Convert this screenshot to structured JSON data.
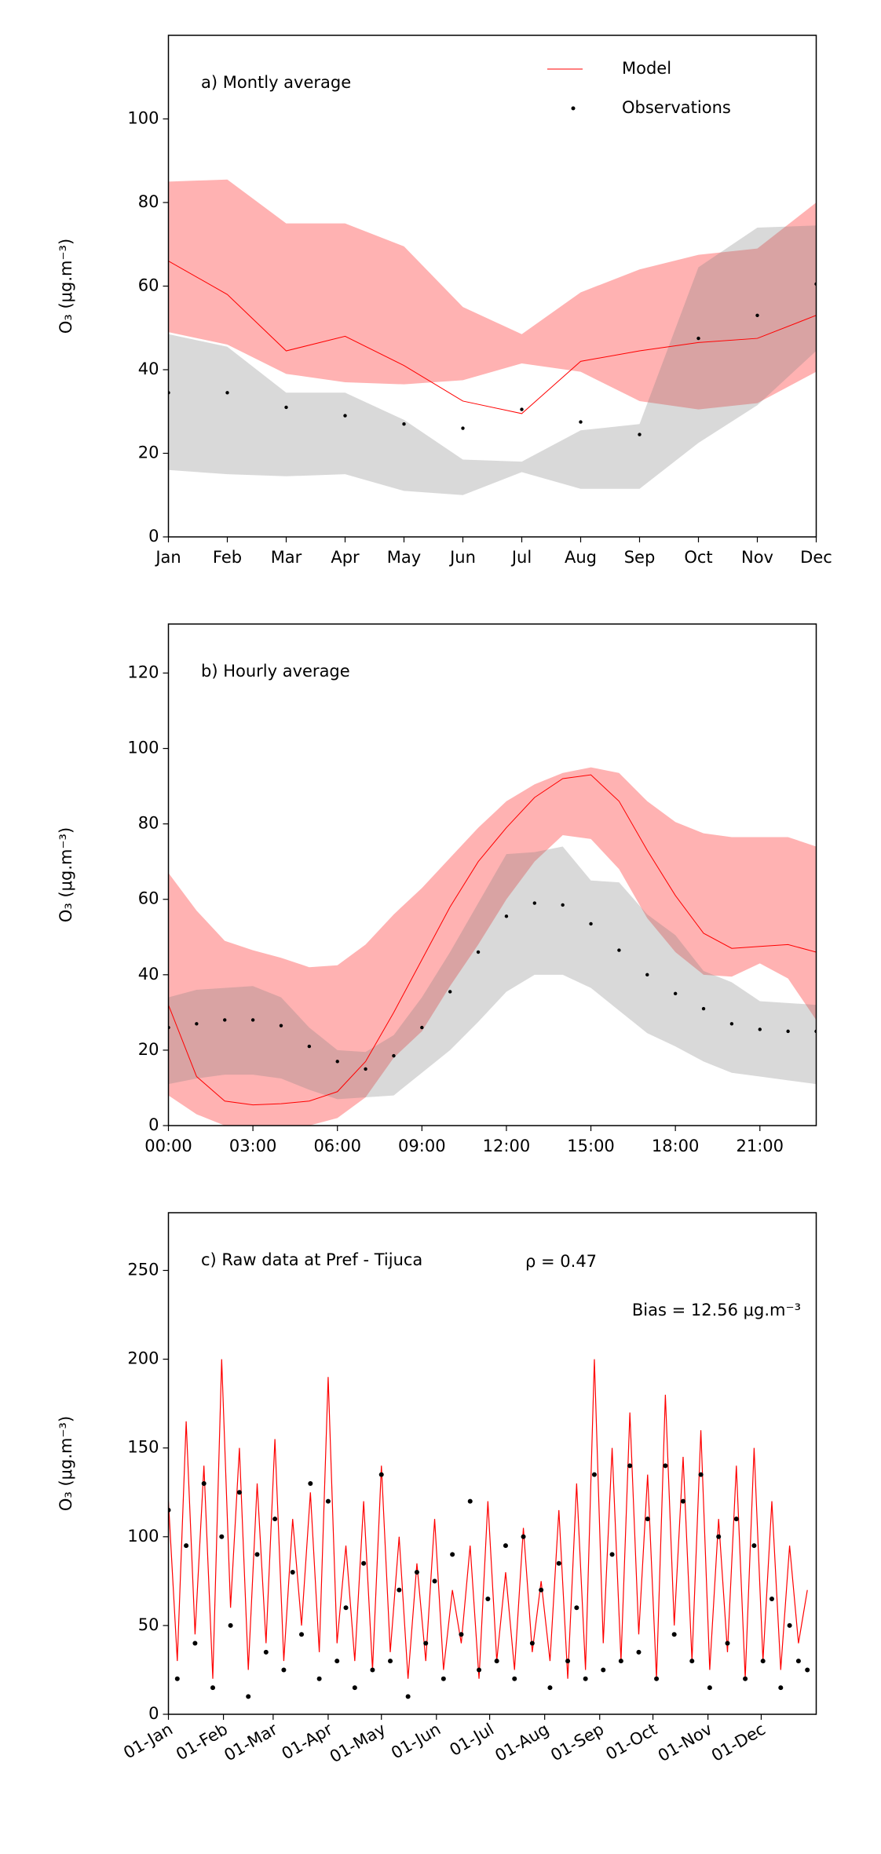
{
  "chart_data": [
    {
      "type": "line",
      "title": "a) Montly average",
      "ylabel": "O₃ (μg.m⁻³)",
      "legend": "upper right",
      "categories": [
        "Jan",
        "Feb",
        "Mar",
        "Apr",
        "May",
        "Jun",
        "Jul",
        "Aug",
        "Sep",
        "Oct",
        "Nov",
        "Dec"
      ],
      "ylim": [
        0,
        120
      ],
      "yticks": [
        0,
        20,
        40,
        60,
        80,
        100
      ],
      "series": [
        {
          "name": "Model",
          "style": "line",
          "color": "#ff0000",
          "band_color": "#ff0000",
          "band_opacity": 0.3,
          "values": [
            66,
            58,
            44.5,
            48,
            41,
            32.5,
            29.5,
            42,
            44.5,
            46.5,
            47.5,
            53
          ],
          "upper": [
            85,
            85.5,
            75,
            75,
            69.5,
            55,
            48.5,
            58.5,
            64,
            67.5,
            69,
            80
          ],
          "lower": [
            49,
            46,
            39,
            37,
            36.5,
            37.5,
            41.5,
            39.5,
            32.5,
            30.5,
            32,
            39.5
          ]
        },
        {
          "name": "Observations",
          "style": "points",
          "color": "#000000",
          "band_color": "#808080",
          "band_opacity": 0.3,
          "values": [
            34.5,
            34.5,
            31,
            29,
            27,
            26,
            30.5,
            27.5,
            24.5,
            47.5,
            53,
            60.5
          ],
          "upper": [
            48.5,
            45.5,
            34.5,
            34.5,
            28,
            18.5,
            18,
            25.5,
            27,
            64.5,
            74,
            74.5
          ],
          "lower": [
            16,
            15,
            14.5,
            15,
            11,
            10,
            15.5,
            11.5,
            11.5,
            22.5,
            31.5,
            44.5
          ]
        }
      ]
    },
    {
      "type": "line",
      "title": "b) Hourly average",
      "ylabel": "O₃ (μg.m⁻³)",
      "x": [
        0,
        1,
        2,
        3,
        4,
        5,
        6,
        7,
        8,
        9,
        10,
        11,
        12,
        13,
        14,
        15,
        16,
        17,
        18,
        19,
        20,
        21,
        22,
        23
      ],
      "xlim": [
        0,
        23
      ],
      "xticks": [
        {
          "value": 0,
          "label": "00:00"
        },
        {
          "value": 3,
          "label": "03:00"
        },
        {
          "value": 6,
          "label": "06:00"
        },
        {
          "value": 9,
          "label": "09:00"
        },
        {
          "value": 12,
          "label": "12:00"
        },
        {
          "value": 15,
          "label": "15:00"
        },
        {
          "value": 18,
          "label": "18:00"
        },
        {
          "value": 21,
          "label": "21:00"
        }
      ],
      "ylim": [
        0,
        133
      ],
      "yticks": [
        0,
        20,
        40,
        60,
        80,
        100,
        120
      ],
      "series": [
        {
          "style": "line",
          "color": "#ff0000",
          "band_color": "#ff0000",
          "band_opacity": 0.3,
          "values": [
            32,
            13,
            6.5,
            5.5,
            5.8,
            6.5,
            9,
            17,
            30,
            44,
            58,
            70,
            79,
            87,
            92,
            93,
            86,
            73,
            61,
            51,
            47,
            47.5,
            48,
            46
          ],
          "upper": [
            67,
            57,
            49,
            46.5,
            44.5,
            42,
            42.5,
            48,
            56,
            63,
            71,
            79,
            86,
            90.5,
            93.5,
            95,
            93.5,
            86,
            80.5,
            77.5,
            76.5,
            76.5,
            76.5,
            74
          ],
          "lower": [
            8,
            3,
            0,
            0,
            0,
            0,
            2,
            7.5,
            18,
            25,
            37,
            48,
            60,
            70,
            77,
            76,
            68,
            55,
            46,
            40,
            39.5,
            43,
            39,
            28
          ]
        },
        {
          "style": "points",
          "color": "#000000",
          "band_color": "#808080",
          "band_opacity": 0.3,
          "values": [
            26,
            27,
            28,
            28,
            26.5,
            21,
            17,
            15,
            18.5,
            26,
            35.5,
            46,
            55.5,
            59,
            58.5,
            53.5,
            46.5,
            40,
            35,
            31,
            27,
            25.5,
            25,
            25
          ],
          "upper": [
            34,
            36,
            36.5,
            37,
            34,
            26,
            20,
            19.5,
            24,
            34,
            46,
            59,
            72,
            72.5,
            74,
            65,
            64.5,
            56,
            50.5,
            41,
            38,
            33,
            32.5,
            32
          ],
          "lower": [
            11,
            12.5,
            13.5,
            13.5,
            12.5,
            9.5,
            7,
            7.5,
            8,
            14,
            20,
            27.5,
            35.5,
            40,
            40,
            36.5,
            30.5,
            24.5,
            21,
            17,
            14,
            13,
            12,
            11
          ]
        }
      ]
    },
    {
      "type": "line",
      "title": "c) Raw data at Pref - Tijuca",
      "ylabel": "O₃ (μg.m⁻³)",
      "annotations": [
        "ρ = 0.47",
        "Bias = 12.56 μg.m⁻³"
      ],
      "x": [
        0,
        5,
        10,
        15,
        20,
        25,
        30,
        35,
        40,
        45,
        50,
        55,
        60,
        65,
        70,
        75,
        80,
        85,
        90,
        95,
        100,
        105,
        110,
        115,
        120,
        125,
        130,
        135,
        140,
        145,
        150,
        155,
        160,
        165,
        170,
        175,
        180,
        185,
        190,
        195,
        200,
        205,
        210,
        215,
        220,
        225,
        230,
        235,
        240,
        245,
        250,
        255,
        260,
        265,
        270,
        275,
        280,
        285,
        290,
        295,
        300,
        305,
        310,
        315,
        320,
        325,
        330,
        335,
        340,
        345,
        350,
        355,
        360
      ],
      "xlim": [
        0,
        365
      ],
      "xticks": [
        {
          "value": 0,
          "label": "01-Jan"
        },
        {
          "value": 31,
          "label": "01-Feb"
        },
        {
          "value": 59,
          "label": "01-Mar"
        },
        {
          "value": 90,
          "label": "01-Apr"
        },
        {
          "value": 120,
          "label": "01-May"
        },
        {
          "value": 151,
          "label": "01-Jun"
        },
        {
          "value": 181,
          "label": "01-Jul"
        },
        {
          "value": 212,
          "label": "01-Aug"
        },
        {
          "value": 243,
          "label": "01-Sep"
        },
        {
          "value": 273,
          "label": "01-Oct"
        },
        {
          "value": 304,
          "label": "01-Nov"
        },
        {
          "value": 334,
          "label": "01-Dec"
        }
      ],
      "ylim": [
        0,
        282.5
      ],
      "yticks": [
        0,
        50,
        100,
        150,
        200,
        250
      ],
      "series": [
        {
          "style": "line",
          "color": "#ff0000",
          "values": [
            120,
            30,
            165,
            45,
            140,
            20,
            200,
            60,
            150,
            25,
            130,
            40,
            155,
            30,
            110,
            50,
            125,
            35,
            190,
            40,
            95,
            30,
            120,
            25,
            140,
            35,
            100,
            20,
            85,
            30,
            110,
            25,
            70,
            40,
            95,
            20,
            120,
            30,
            80,
            25,
            105,
            35,
            75,
            30,
            115,
            20,
            130,
            25,
            200,
            40,
            150,
            30,
            170,
            45,
            135,
            20,
            180,
            50,
            145,
            30,
            160,
            25,
            110,
            35,
            140,
            20,
            150,
            30,
            120,
            25,
            95,
            40,
            70
          ]
        },
        {
          "style": "points",
          "color": "#000000",
          "values": [
            115,
            20,
            95,
            40,
            130,
            15,
            100,
            50,
            125,
            10,
            90,
            35,
            110,
            25,
            80,
            45,
            130,
            20,
            120,
            30,
            60,
            15,
            85,
            25,
            135,
            30,
            70,
            10,
            80,
            40,
            75,
            20,
            90,
            45,
            120,
            25,
            65,
            30,
            95,
            20,
            100,
            40,
            70,
            15,
            85,
            30,
            60,
            20,
            135,
            25,
            90,
            30,
            140,
            35,
            110,
            20,
            140,
            45,
            120,
            30,
            135,
            15,
            100,
            40,
            110,
            20,
            95,
            30,
            65,
            15,
            50,
            30,
            25
          ]
        }
      ]
    }
  ]
}
